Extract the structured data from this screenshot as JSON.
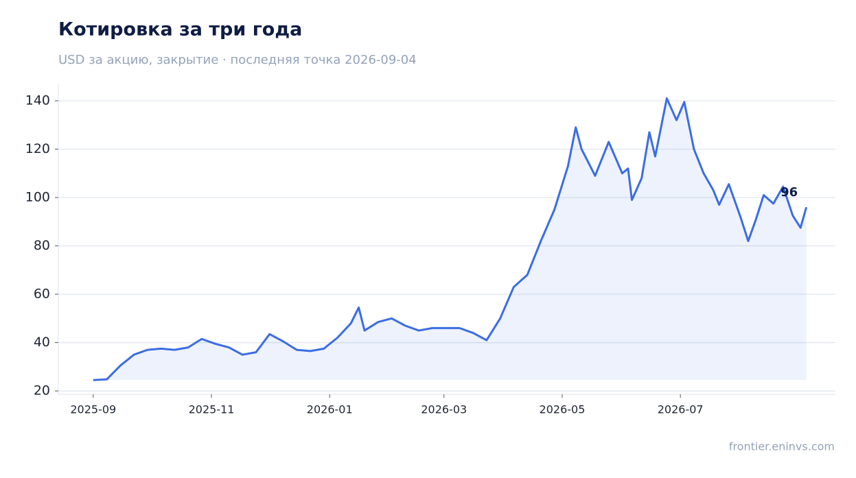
{
  "chart_data": {
    "type": "line",
    "title": "Котировка за три года",
    "subtitle": "USD за акцию, закрытие · последняя точка 2026-09-04",
    "source": "frontier.eninvs.com",
    "x": [
      "2025-09-01",
      "2025-09-08",
      "2025-09-15",
      "2025-09-22",
      "2025-09-29",
      "2025-10-06",
      "2025-10-13",
      "2025-10-20",
      "2025-10-27",
      "2025-11-03",
      "2025-11-10",
      "2025-11-17",
      "2025-11-24",
      "2025-12-01",
      "2025-12-08",
      "2025-12-15",
      "2025-12-22",
      "2025-12-29",
      "2026-01-05",
      "2026-01-12",
      "2026-01-16",
      "2026-01-19",
      "2026-01-26",
      "2026-02-02",
      "2026-02-09",
      "2026-02-16",
      "2026-02-23",
      "2026-03-02",
      "2026-03-09",
      "2026-03-16",
      "2026-03-23",
      "2026-03-30",
      "2026-04-06",
      "2026-04-13",
      "2026-04-20",
      "2026-04-27",
      "2026-05-04",
      "2026-05-08",
      "2026-05-11",
      "2026-05-18",
      "2026-05-25",
      "2026-06-01",
      "2026-06-04",
      "2026-06-06",
      "2026-06-11",
      "2026-06-15",
      "2026-06-18",
      "2026-06-24",
      "2026-06-29",
      "2026-07-03",
      "2026-07-08",
      "2026-07-13",
      "2026-07-18",
      "2026-07-21",
      "2026-07-26",
      "2026-08-01",
      "2026-08-05",
      "2026-08-09",
      "2026-08-13",
      "2026-08-18",
      "2026-08-23",
      "2026-08-28",
      "2026-09-01",
      "2026-09-04"
    ],
    "series": [
      {
        "color": "#3b6ce3",
        "values": [
          24.5,
          24.8,
          30.5,
          35,
          37,
          37.5,
          37,
          38,
          41.5,
          39.5,
          38,
          35,
          36,
          43.5,
          40.5,
          37,
          36.5,
          37.5,
          42,
          48,
          54.5,
          45,
          48.5,
          50,
          47,
          45,
          46,
          46,
          46,
          44,
          41,
          50,
          63,
          68,
          82,
          95,
          113,
          129,
          120,
          109,
          123,
          110,
          112,
          99,
          108,
          127,
          117,
          141,
          132,
          139.5,
          120,
          110,
          103,
          97,
          105.5,
          92,
          82,
          91,
          101,
          97.5,
          104.5,
          92.5,
          87.5,
          96
        ]
      }
    ],
    "annotation": "96",
    "xlim": [
      "2025-08-14",
      "2026-09-19"
    ],
    "xticks": [
      {
        "value": "2025-09-01",
        "label": "2025-09"
      },
      {
        "value": "2025-11-01",
        "label": "2025-11"
      },
      {
        "value": "2026-01-01",
        "label": "2026-01"
      },
      {
        "value": "2026-03-01",
        "label": "2026-03"
      },
      {
        "value": "2026-05-01",
        "label": "2026-05"
      },
      {
        "value": "2026-07-01",
        "label": "2026-07"
      }
    ],
    "ylim": [
      18.6,
      146.8
    ],
    "yticks": [
      20,
      40,
      60,
      80,
      100,
      120,
      140
    ],
    "grid": true
  }
}
